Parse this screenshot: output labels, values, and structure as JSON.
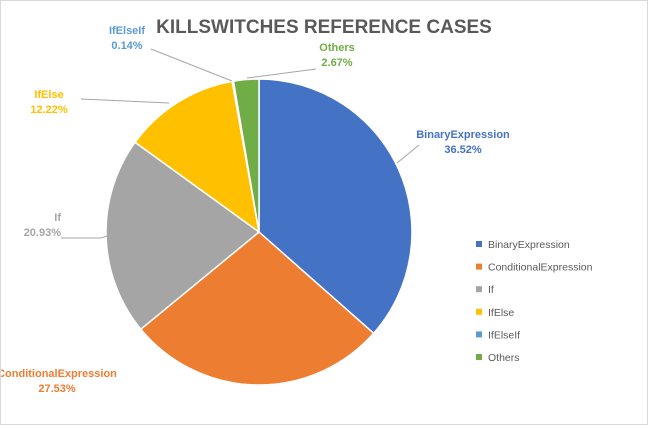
{
  "chart_data": {
    "type": "pie",
    "title": "KILLSWITCHES REFERENCE CASES",
    "categories": [
      "BinaryExpression",
      "ConditionalExpression",
      "If",
      "IfElse",
      "IfElseIf",
      "Others"
    ],
    "values": [
      36.52,
      27.53,
      20.93,
      12.22,
      0.14,
      2.67
    ],
    "value_labels": [
      "36.52%",
      "27.53%",
      "20.93%",
      "12.22%",
      "0.14%",
      "2.67%"
    ],
    "colors": [
      "#4472C4",
      "#ED7D31",
      "#A5A5A5",
      "#FFC000",
      "#5B9BD5",
      "#70AD47"
    ],
    "unit": "%",
    "start_angle_deg": 0,
    "direction": "clockwise",
    "legend_position": "right",
    "data_labels": "outside with leader lines"
  }
}
